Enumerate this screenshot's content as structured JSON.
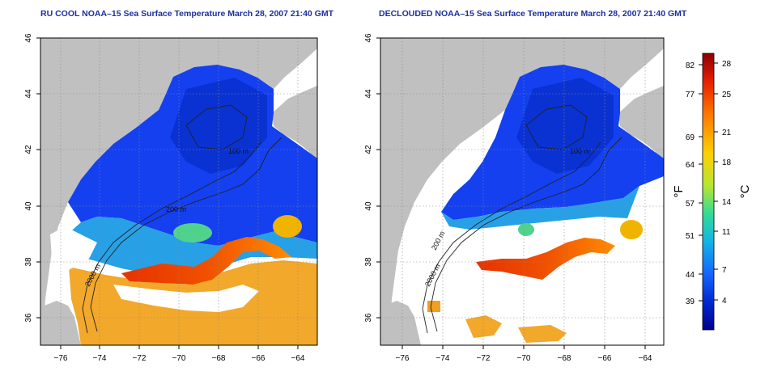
{
  "titles": {
    "left": "RU COOL NOAA–15 Sea Surface Temperature March 28, 2007 21:40 GMT",
    "right": "DECLOUDED NOAA–15 Sea Surface Temperature March 28, 2007 21:40 GMT"
  },
  "map": {
    "lon_range": [
      -77,
      -63
    ],
    "lat_range": [
      35,
      46
    ],
    "lon_ticks": [
      "−76",
      "−74",
      "−72",
      "−70",
      "−68",
      "−66",
      "−64"
    ],
    "lat_ticks": [
      "36",
      "38",
      "40",
      "42",
      "44",
      "46"
    ],
    "grid": "dotted",
    "land_color": "#c0c0c0",
    "cloud_color": "#ffffff",
    "contours": {
      "label_200": "200 m",
      "label_2000": "2000 m",
      "label_100": "100 m"
    }
  },
  "colorbar": {
    "fahrenheit_ticks": [
      "82",
      "77",
      "69",
      "64",
      "57",
      "51",
      "44",
      "39"
    ],
    "celsius_ticks": [
      "28",
      "25",
      "21",
      "18",
      "14",
      "11",
      "7",
      "4"
    ],
    "fahrenheit_unit": "°F",
    "celsius_unit": "°C",
    "colors": [
      "#8b0000",
      "#e61e00",
      "#ff7800",
      "#ffd000",
      "#b4e632",
      "#32dc96",
      "#14b4e6",
      "#1464ff",
      "#0028d2",
      "#00008c"
    ]
  }
}
